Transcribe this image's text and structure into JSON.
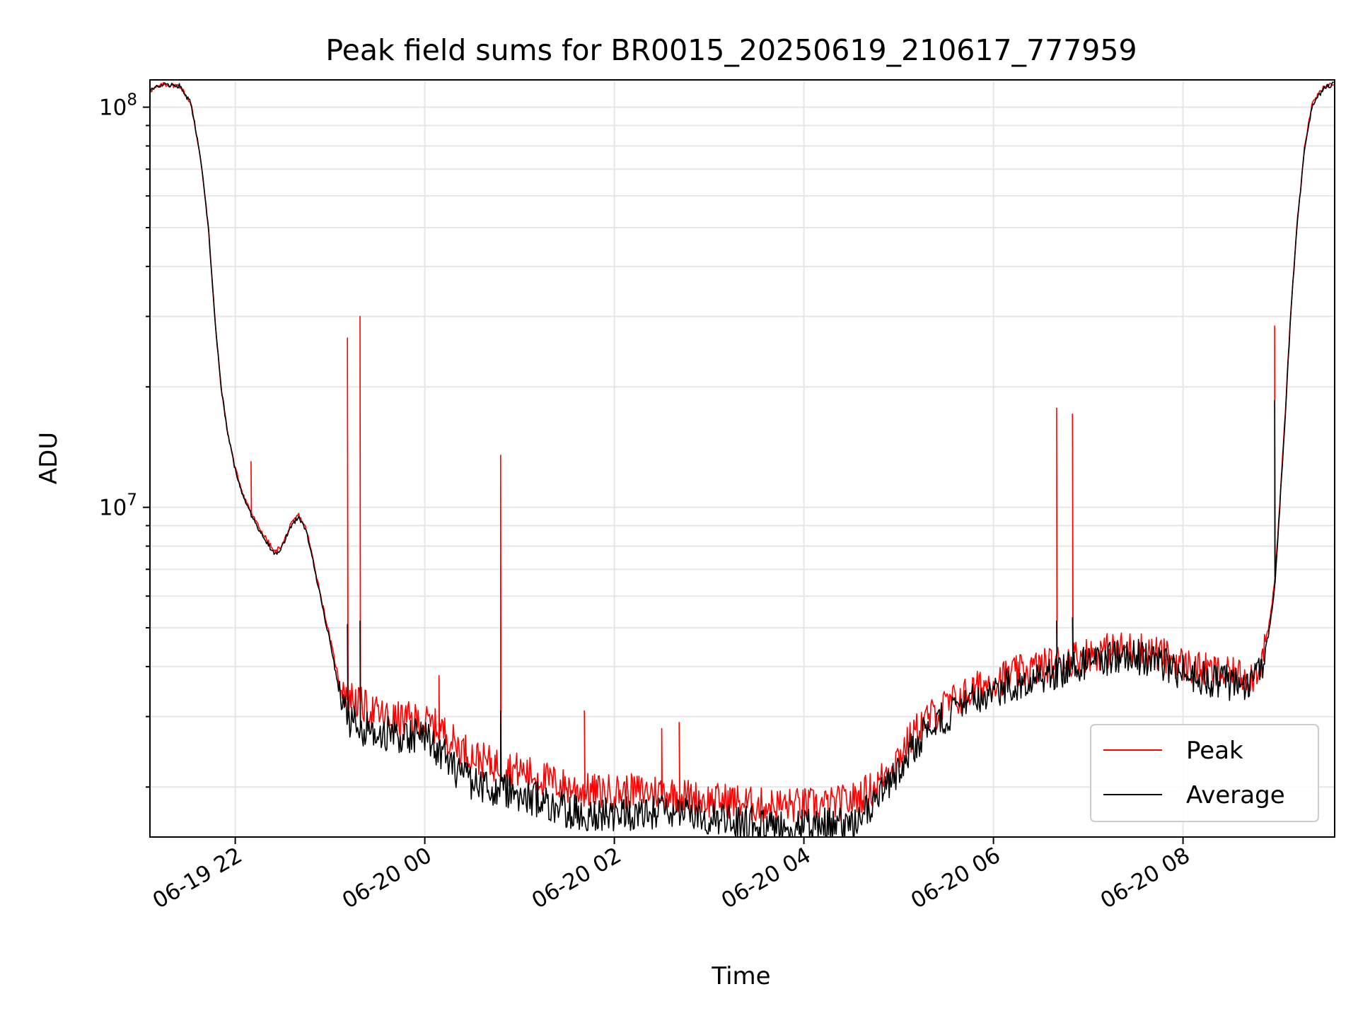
{
  "chart_data": {
    "type": "line",
    "title": "Peak field sums for BR0015_20250619_210617_777959",
    "xlabel": "Time",
    "ylabel": "ADU",
    "yscale": "log",
    "xlim": [
      "2025-06-19 21:06",
      "2025-06-20 09:36"
    ],
    "ylim": [
      1500000,
      117000000
    ],
    "x_ticks": [
      {
        "label": "06-19 22",
        "value": "2025-06-19 22:00"
      },
      {
        "label": "06-20 00",
        "value": "2025-06-20 00:00"
      },
      {
        "label": "06-20 02",
        "value": "2025-06-20 02:00"
      },
      {
        "label": "06-20 04",
        "value": "2025-06-20 04:00"
      },
      {
        "label": "06-20 06",
        "value": "2025-06-20 06:00"
      },
      {
        "label": "06-20 08",
        "value": "2025-06-20 08:00"
      }
    ],
    "y_ticks": [
      {
        "base": "10",
        "exp": "7",
        "value": 10000000
      },
      {
        "base": "10",
        "exp": "8",
        "value": 100000000
      }
    ],
    "grid": true,
    "legend": {
      "position": "lower-right"
    },
    "series": [
      {
        "name": "Peak",
        "color": "#ff0000",
        "points": [
          [
            "2025-06-19 21:06",
            110000000
          ],
          [
            "2025-06-19 21:15",
            114000000
          ],
          [
            "2025-06-19 21:25",
            113000000
          ],
          [
            "2025-06-19 21:32",
            102000000
          ],
          [
            "2025-06-19 21:38",
            75000000
          ],
          [
            "2025-06-19 21:43",
            50000000
          ],
          [
            "2025-06-19 21:47",
            30000000
          ],
          [
            "2025-06-19 21:51",
            20000000
          ],
          [
            "2025-06-19 21:55",
            15500000
          ],
          [
            "2025-06-19 22:00",
            12500000
          ],
          [
            "2025-06-19 22:05",
            10800000
          ],
          [
            "2025-06-19 22:10",
            9700000
          ],
          [
            "2025-06-19 22:15",
            8900000
          ],
          [
            "2025-06-19 22:20",
            8300000
          ],
          [
            "2025-06-19 22:25",
            7700000
          ],
          [
            "2025-06-19 22:30",
            8100000
          ],
          [
            "2025-06-19 22:35",
            9000000
          ],
          [
            "2025-06-19 22:40",
            9600000
          ],
          [
            "2025-06-19 22:45",
            8800000
          ],
          [
            "2025-06-19 22:50",
            7200000
          ],
          [
            "2025-06-19 22:55",
            5800000
          ],
          [
            "2025-06-19 23:00",
            4700000
          ],
          [
            "2025-06-19 23:05",
            3800000
          ],
          [
            "2025-06-19 23:10",
            3450000
          ],
          [
            "2025-06-19 23:20",
            3200000
          ],
          [
            "2025-06-19 23:30",
            3050000
          ],
          [
            "2025-06-19 23:40",
            2950000
          ],
          [
            "2025-06-19 23:50",
            2950000
          ],
          [
            "2025-06-20 00:00",
            2900000
          ],
          [
            "2025-06-20 00:10",
            2800000
          ],
          [
            "2025-06-20 00:20",
            2550000
          ],
          [
            "2025-06-20 00:30",
            2400000
          ],
          [
            "2025-06-20 00:40",
            2300000
          ],
          [
            "2025-06-20 00:50",
            2250000
          ],
          [
            "2025-06-20 01:00",
            2200000
          ],
          [
            "2025-06-20 01:15",
            2100000
          ],
          [
            "2025-06-20 01:30",
            2000000
          ],
          [
            "2025-06-20 01:45",
            1950000
          ],
          [
            "2025-06-20 02:00",
            1950000
          ],
          [
            "2025-06-20 02:15",
            1950000
          ],
          [
            "2025-06-20 02:30",
            1950000
          ],
          [
            "2025-06-20 02:45",
            1900000
          ],
          [
            "2025-06-20 03:00",
            1850000
          ],
          [
            "2025-06-20 03:15",
            1850000
          ],
          [
            "2025-06-20 03:30",
            1800000
          ],
          [
            "2025-06-20 03:45",
            1800000
          ],
          [
            "2025-06-20 04:00",
            1800000
          ],
          [
            "2025-06-20 04:15",
            1800000
          ],
          [
            "2025-06-20 04:30",
            1850000
          ],
          [
            "2025-06-20 04:45",
            2000000
          ],
          [
            "2025-06-20 05:00",
            2400000
          ],
          [
            "2025-06-20 05:15",
            2900000
          ],
          [
            "2025-06-20 05:30",
            3200000
          ],
          [
            "2025-06-20 05:45",
            3450000
          ],
          [
            "2025-06-20 06:00",
            3700000
          ],
          [
            "2025-06-20 06:15",
            3850000
          ],
          [
            "2025-06-20 06:30",
            4000000
          ],
          [
            "2025-06-20 06:45",
            4150000
          ],
          [
            "2025-06-20 07:00",
            4300000
          ],
          [
            "2025-06-20 07:15",
            4400000
          ],
          [
            "2025-06-20 07:30",
            4450000
          ],
          [
            "2025-06-20 07:45",
            4300000
          ],
          [
            "2025-06-20 08:00",
            4050000
          ],
          [
            "2025-06-20 08:15",
            3900000
          ],
          [
            "2025-06-20 08:30",
            3800000
          ],
          [
            "2025-06-20 08:45",
            3800000
          ],
          [
            "2025-06-20 08:50",
            4200000
          ],
          [
            "2025-06-20 08:55",
            5200000
          ],
          [
            "2025-06-20 08:58",
            6500000
          ],
          [
            "2025-06-20 09:00",
            8500000
          ],
          [
            "2025-06-20 09:05",
            18000000
          ],
          [
            "2025-06-20 09:08",
            30000000
          ],
          [
            "2025-06-20 09:12",
            50000000
          ],
          [
            "2025-06-20 09:17",
            80000000
          ],
          [
            "2025-06-20 09:22",
            103000000
          ],
          [
            "2025-06-20 09:30",
            113000000
          ],
          [
            "2025-06-20 09:36",
            115000000
          ]
        ],
        "spikes": [
          [
            "2025-06-19 22:10",
            13000000
          ],
          [
            "2025-06-19 23:11",
            26500000
          ],
          [
            "2025-06-19 23:19",
            30000000
          ],
          [
            "2025-06-20 00:09",
            3800000
          ],
          [
            "2025-06-20 00:48",
            13500000
          ],
          [
            "2025-06-20 01:41",
            3100000
          ],
          [
            "2025-06-20 02:30",
            2800000
          ],
          [
            "2025-06-20 02:41",
            2900000
          ],
          [
            "2025-06-20 06:40",
            17700000
          ],
          [
            "2025-06-20 06:50",
            17100000
          ],
          [
            "2025-06-20 08:58",
            28400000
          ]
        ]
      },
      {
        "name": "Average",
        "color": "#000000",
        "points": [
          [
            "2025-06-19 21:06",
            110000000
          ],
          [
            "2025-06-19 21:15",
            114000000
          ],
          [
            "2025-06-19 21:25",
            113000000
          ],
          [
            "2025-06-19 21:32",
            102000000
          ],
          [
            "2025-06-19 21:38",
            75000000
          ],
          [
            "2025-06-19 21:43",
            50000000
          ],
          [
            "2025-06-19 21:47",
            30000000
          ],
          [
            "2025-06-19 21:51",
            20000000
          ],
          [
            "2025-06-19 21:55",
            15500000
          ],
          [
            "2025-06-19 22:00",
            12400000
          ],
          [
            "2025-06-19 22:05",
            10700000
          ],
          [
            "2025-06-19 22:10",
            9600000
          ],
          [
            "2025-06-19 22:15",
            8800000
          ],
          [
            "2025-06-19 22:20",
            8200000
          ],
          [
            "2025-06-19 22:25",
            7600000
          ],
          [
            "2025-06-19 22:30",
            8000000
          ],
          [
            "2025-06-19 22:35",
            8900000
          ],
          [
            "2025-06-19 22:40",
            9500000
          ],
          [
            "2025-06-19 22:45",
            8700000
          ],
          [
            "2025-06-19 22:50",
            7100000
          ],
          [
            "2025-06-19 22:55",
            5700000
          ],
          [
            "2025-06-19 23:00",
            4600000
          ],
          [
            "2025-06-19 23:05",
            3600000
          ],
          [
            "2025-06-19 23:10",
            3000000
          ],
          [
            "2025-06-19 23:20",
            2800000
          ],
          [
            "2025-06-19 23:30",
            2750000
          ],
          [
            "2025-06-19 23:40",
            2700000
          ],
          [
            "2025-06-19 23:50",
            2700000
          ],
          [
            "2025-06-20 00:00",
            2650000
          ],
          [
            "2025-06-20 00:10",
            2450000
          ],
          [
            "2025-06-20 00:20",
            2200000
          ],
          [
            "2025-06-20 00:30",
            2050000
          ],
          [
            "2025-06-20 00:40",
            2000000
          ],
          [
            "2025-06-20 00:50",
            1980000
          ],
          [
            "2025-06-20 01:00",
            1900000
          ],
          [
            "2025-06-20 01:15",
            1850000
          ],
          [
            "2025-06-20 01:30",
            1750000
          ],
          [
            "2025-06-20 01:45",
            1700000
          ],
          [
            "2025-06-20 02:00",
            1720000
          ],
          [
            "2025-06-20 02:15",
            1720000
          ],
          [
            "2025-06-20 02:30",
            1720000
          ],
          [
            "2025-06-20 02:45",
            1700000
          ],
          [
            "2025-06-20 03:00",
            1680000
          ],
          [
            "2025-06-20 03:15",
            1650000
          ],
          [
            "2025-06-20 03:30",
            1620000
          ],
          [
            "2025-06-20 03:45",
            1600000
          ],
          [
            "2025-06-20 04:00",
            1600000
          ],
          [
            "2025-06-20 04:15",
            1600000
          ],
          [
            "2025-06-20 04:30",
            1620000
          ],
          [
            "2025-06-20 04:45",
            1800000
          ],
          [
            "2025-06-20 05:00",
            2200000
          ],
          [
            "2025-06-20 05:15",
            2700000
          ],
          [
            "2025-06-20 05:30",
            3000000
          ],
          [
            "2025-06-20 05:45",
            3250000
          ],
          [
            "2025-06-20 06:00",
            3500000
          ],
          [
            "2025-06-20 06:15",
            3650000
          ],
          [
            "2025-06-20 06:30",
            3800000
          ],
          [
            "2025-06-20 06:45",
            3950000
          ],
          [
            "2025-06-20 07:00",
            4100000
          ],
          [
            "2025-06-20 07:15",
            4200000
          ],
          [
            "2025-06-20 07:30",
            4250000
          ],
          [
            "2025-06-20 07:45",
            4100000
          ],
          [
            "2025-06-20 08:00",
            3850000
          ],
          [
            "2025-06-20 08:15",
            3700000
          ],
          [
            "2025-06-20 08:30",
            3650000
          ],
          [
            "2025-06-20 08:45",
            3650000
          ],
          [
            "2025-06-20 08:50",
            4000000
          ],
          [
            "2025-06-20 08:55",
            5000000
          ],
          [
            "2025-06-20 08:58",
            6300000
          ],
          [
            "2025-06-20 09:00",
            8300000
          ],
          [
            "2025-06-20 09:05",
            17500000
          ],
          [
            "2025-06-20 09:08",
            29500000
          ],
          [
            "2025-06-20 09:12",
            49500000
          ],
          [
            "2025-06-20 09:17",
            79500000
          ],
          [
            "2025-06-20 09:22",
            102000000
          ],
          [
            "2025-06-20 09:30",
            112000000
          ],
          [
            "2025-06-20 09:36",
            114500000
          ]
        ],
        "spikes": [
          [
            "2025-06-19 23:11",
            5100000
          ],
          [
            "2025-06-19 23:19",
            5200000
          ],
          [
            "2025-06-20 00:48",
            3100000
          ],
          [
            "2025-06-20 06:40",
            5200000
          ],
          [
            "2025-06-20 06:50",
            5300000
          ],
          [
            "2025-06-20 08:58",
            18500000
          ]
        ]
      }
    ]
  }
}
